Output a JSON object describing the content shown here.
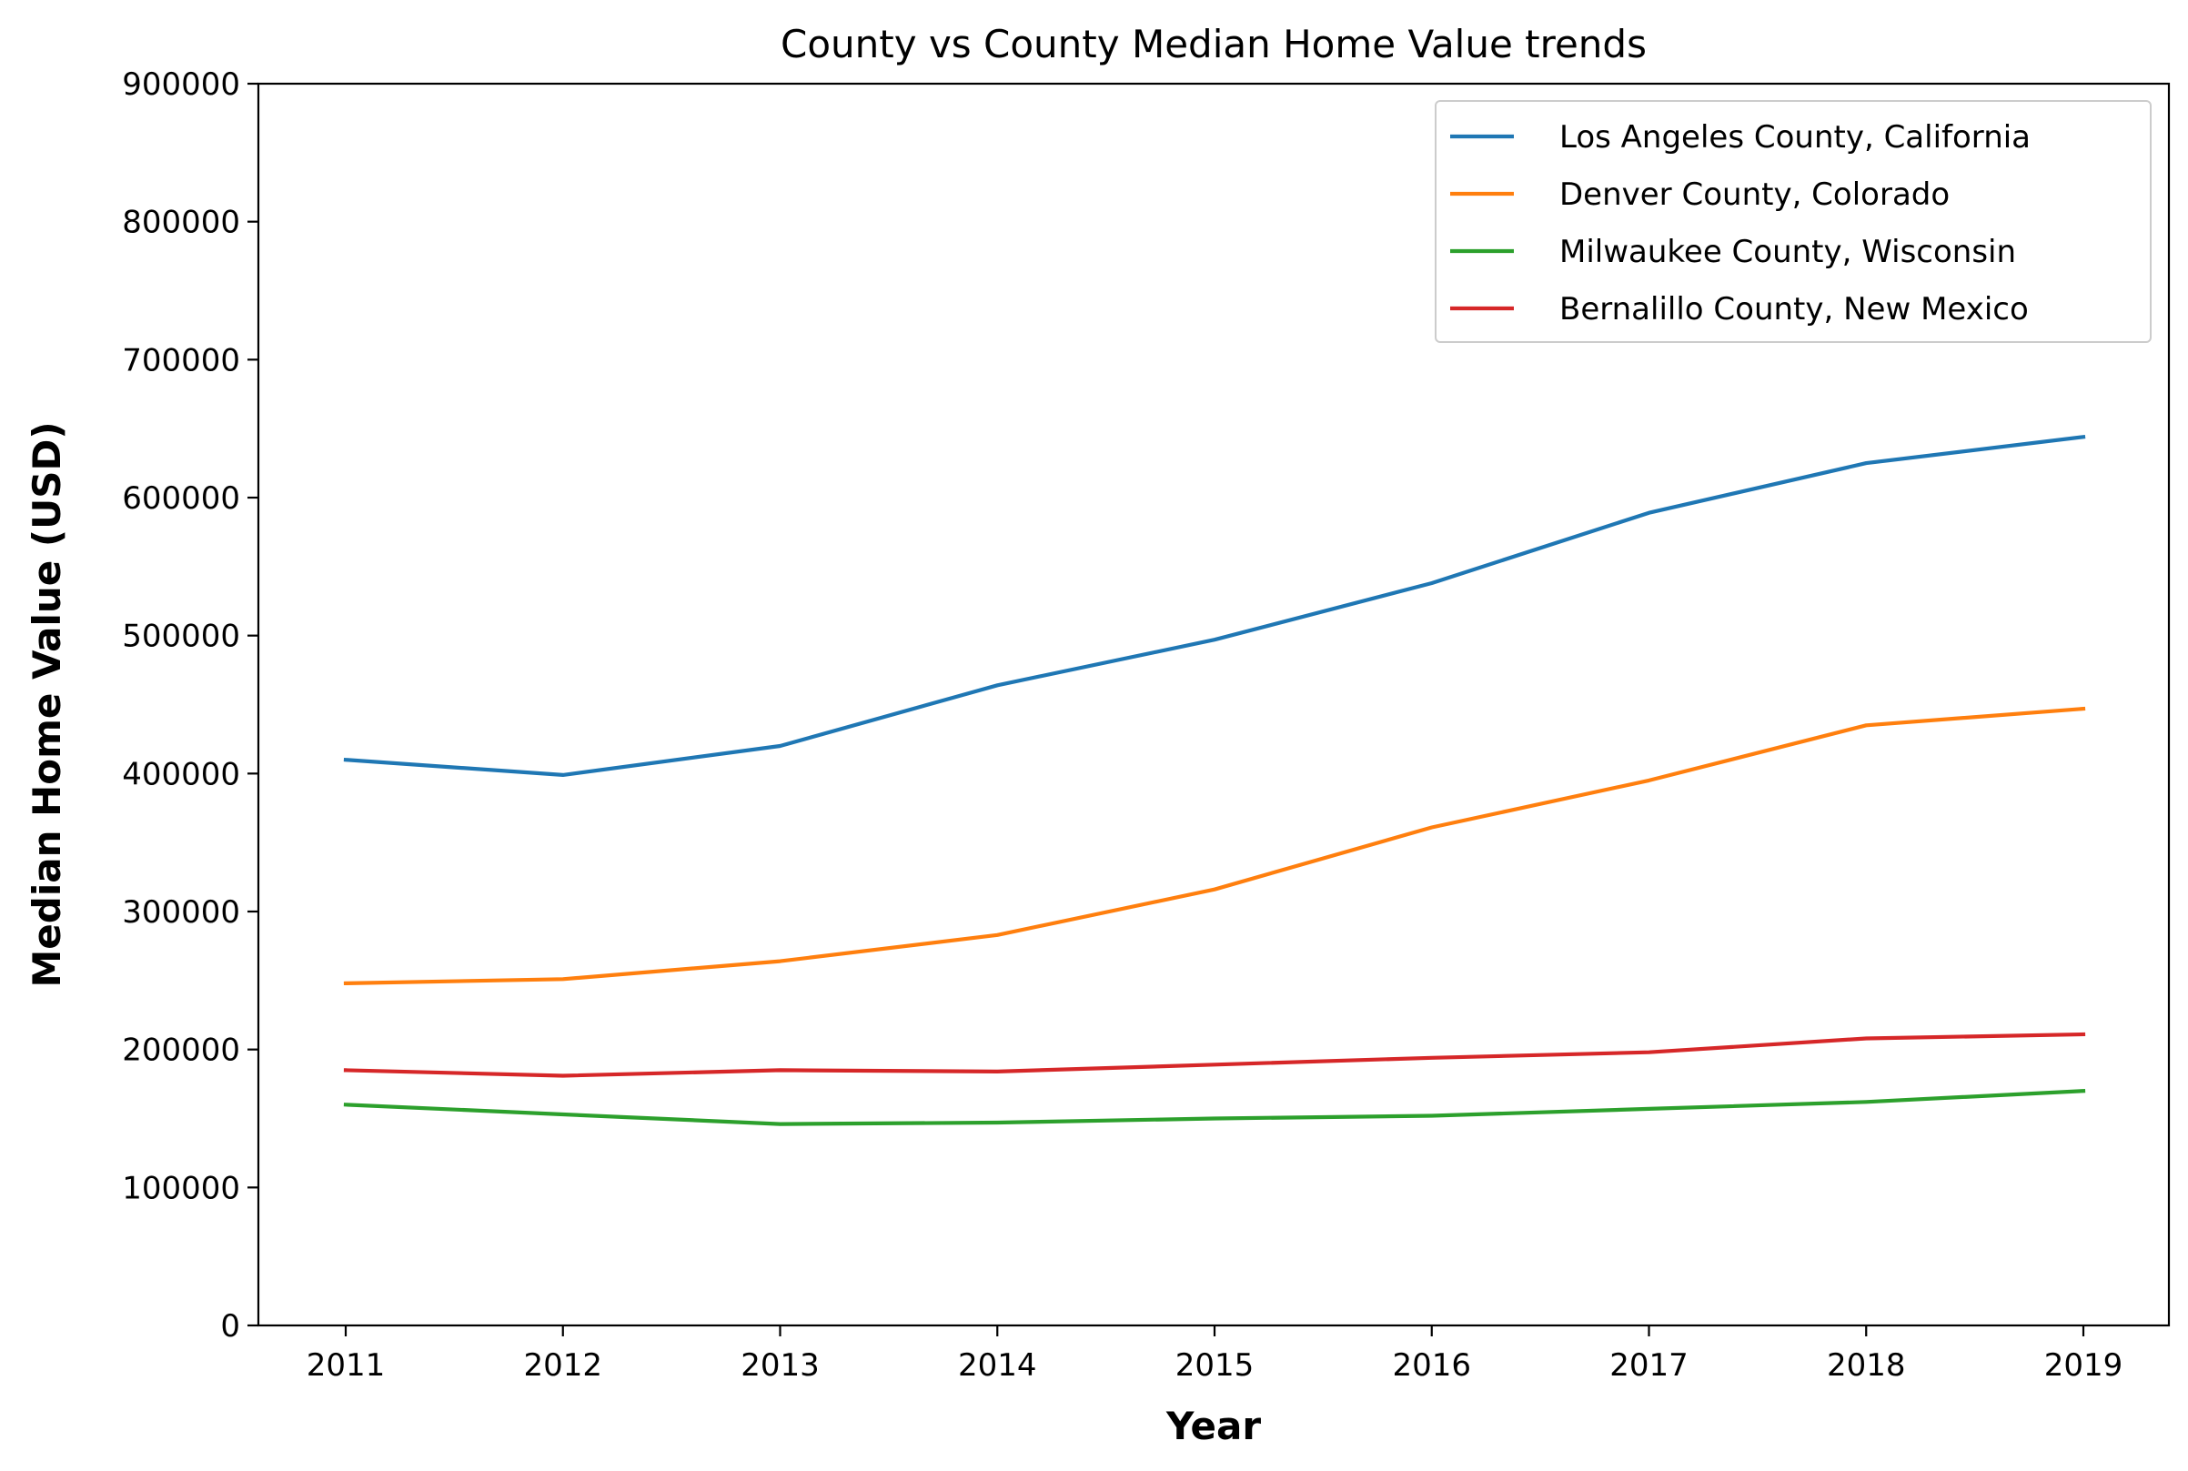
{
  "chart_data": {
    "type": "line",
    "title": "County vs County Median Home Value trends",
    "xlabel": "Year",
    "ylabel": "Median Home Value (USD)",
    "x": [
      2011,
      2012,
      2013,
      2014,
      2015,
      2016,
      2017,
      2018,
      2019
    ],
    "x_tick_labels": [
      "2011",
      "2012",
      "2013",
      "2014",
      "2015",
      "2016",
      "2017",
      "2018",
      "2019"
    ],
    "ylim": [
      0,
      900000
    ],
    "y_ticks": [
      0,
      100000,
      200000,
      300000,
      400000,
      500000,
      600000,
      700000,
      800000,
      900000
    ],
    "y_tick_labels": [
      "0",
      "100000",
      "200000",
      "300000",
      "400000",
      "500000",
      "600000",
      "700000",
      "800000",
      "900000"
    ],
    "grid": false,
    "legend_position": "top-right",
    "series": [
      {
        "name": "Los Angeles County, California",
        "color": "#1f77b4",
        "values": [
          410000,
          399000,
          420000,
          464000,
          497000,
          538000,
          589000,
          625000,
          644000
        ]
      },
      {
        "name": "Denver County, Colorado",
        "color": "#ff7f0e",
        "values": [
          248000,
          251000,
          264000,
          283000,
          316000,
          361000,
          395000,
          435000,
          447000
        ]
      },
      {
        "name": "Milwaukee County, Wisconsin",
        "color": "#2ca02c",
        "values": [
          160000,
          153000,
          146000,
          147000,
          150000,
          152000,
          157000,
          162000,
          170000
        ]
      },
      {
        "name": "Bernalillo County, New Mexico",
        "color": "#d62728",
        "values": [
          185000,
          181000,
          185000,
          184000,
          189000,
          194000,
          198000,
          208000,
          211000
        ]
      }
    ]
  }
}
